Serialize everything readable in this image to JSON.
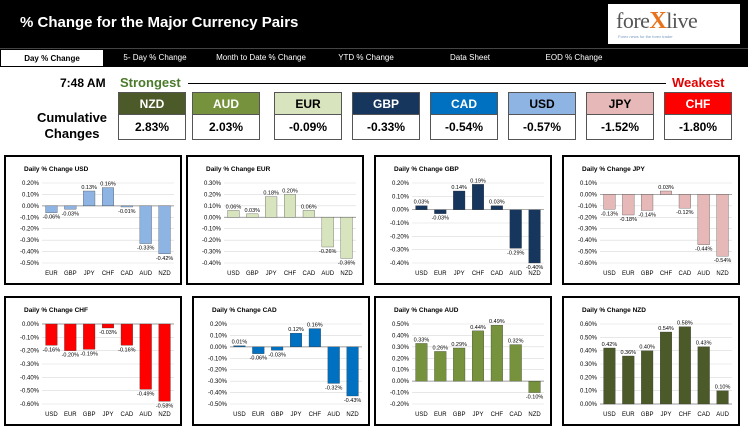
{
  "header": {
    "title": "% Change for the Major Currency Pairs",
    "logo_text_a": "fore",
    "logo_text_x": "X",
    "logo_text_b": "live",
    "logo_tagline": "Forex news for the forex trader"
  },
  "tabs": [
    {
      "label": "Day % Change",
      "active": true
    },
    {
      "label": "5- Day % Change",
      "active": false
    },
    {
      "label": "Month to Date % Change",
      "active": false
    },
    {
      "label": "YTD % Change",
      "active": false
    },
    {
      "label": "Data Sheet",
      "active": false
    },
    {
      "label": "EOD % Change",
      "active": false
    }
  ],
  "time": "7:48 AM",
  "strongest_label": "Strongest",
  "weakest_label": "Weakest",
  "cumulative_label": "Cumulative Changes",
  "currencies": [
    {
      "name": "NZD",
      "value": "2.83%",
      "bg": "#4b5a28",
      "fg": "#ffffff"
    },
    {
      "name": "AUD",
      "value": "2.03%",
      "bg": "#76923c",
      "fg": "#ffffff"
    },
    {
      "name": "EUR",
      "value": "-0.09%",
      "bg": "#d7e4bd",
      "fg": "#000000"
    },
    {
      "name": "GBP",
      "value": "-0.33%",
      "bg": "#17365d",
      "fg": "#ffffff"
    },
    {
      "name": "CAD",
      "value": "-0.54%",
      "bg": "#0070c0",
      "fg": "#ffffff"
    },
    {
      "name": "USD",
      "value": "-0.57%",
      "bg": "#8eb4e3",
      "fg": "#000000"
    },
    {
      "name": "JPY",
      "value": "-1.52%",
      "bg": "#e6b9b8",
      "fg": "#000000"
    },
    {
      "name": "CHF",
      "value": "-1.80%",
      "bg": "#ff0000",
      "fg": "#ffffff"
    }
  ],
  "chart_data": [
    {
      "type": "bar",
      "title": "Daily % Change USD",
      "categories": [
        "EUR",
        "GBP",
        "JPY",
        "CHF",
        "CAD",
        "AUD",
        "NZD"
      ],
      "values": [
        -0.06,
        -0.03,
        0.13,
        0.16,
        -0.01,
        -0.33,
        -0.42
      ],
      "labels": [
        "-0.06%",
        "-0.03%",
        "0.13%",
        "0.16%",
        "-0.01%",
        "-0.33%",
        "-0.42%"
      ],
      "ylim": [
        -0.5,
        0.2
      ],
      "ticks": [
        "0.20%",
        "0.10%",
        "0.00%",
        "-0.10%",
        "-0.20%",
        "-0.30%",
        "-0.40%",
        "-0.50%"
      ],
      "color": "#8eb4e3"
    },
    {
      "type": "bar",
      "title": "Daily % Change EUR",
      "categories": [
        "USD",
        "GBP",
        "JPY",
        "CHF",
        "CAD",
        "AUD",
        "NZD"
      ],
      "values": [
        0.06,
        0.03,
        0.18,
        0.2,
        0.06,
        -0.26,
        -0.36
      ],
      "labels": [
        "0.06%",
        "0.03%",
        "0.18%",
        "0.20%",
        "0.06%",
        "-0.26%",
        "-0.36%"
      ],
      "ylim": [
        -0.4,
        0.3
      ],
      "ticks": [
        "0.30%",
        "0.20%",
        "0.10%",
        "0.00%",
        "-0.10%",
        "-0.20%",
        "-0.30%",
        "-0.40%"
      ],
      "color": "#d7e4bd"
    },
    {
      "type": "bar",
      "title": "Daily % Change GBP",
      "categories": [
        "USD",
        "EUR",
        "JPY",
        "CHF",
        "CAD",
        "AUD",
        "NZD"
      ],
      "values": [
        0.03,
        -0.03,
        0.14,
        0.19,
        0.03,
        -0.29,
        -0.4
      ],
      "labels": [
        "0.03%",
        "-0.03%",
        "0.14%",
        "0.19%",
        "0.03%",
        "-0.29%",
        "-0.40%"
      ],
      "ylim": [
        -0.4,
        0.2
      ],
      "ticks": [
        "0.20%",
        "0.10%",
        "0.00%",
        "-0.10%",
        "-0.20%",
        "-0.30%",
        "-0.40%"
      ],
      "color": "#17365d"
    },
    {
      "type": "bar",
      "title": "Daily % Change JPY",
      "categories": [
        "USD",
        "EUR",
        "GBP",
        "CHF",
        "CAD",
        "AUD",
        "NZD"
      ],
      "values": [
        -0.13,
        -0.18,
        -0.14,
        0.03,
        -0.12,
        -0.44,
        -0.54
      ],
      "labels": [
        "-0.13%",
        "-0.18%",
        "-0.14%",
        "0.03%",
        "-0.12%",
        "-0.44%",
        "-0.54%"
      ],
      "ylim": [
        -0.6,
        0.1
      ],
      "ticks": [
        "0.10%",
        "0.00%",
        "-0.10%",
        "-0.20%",
        "-0.30%",
        "-0.40%",
        "-0.50%",
        "-0.60%"
      ],
      "color": "#e6b9b8"
    },
    {
      "type": "bar",
      "title": "Daily % Change CHF",
      "categories": [
        "USD",
        "EUR",
        "GBP",
        "JPY",
        "CAD",
        "AUD",
        "NZD"
      ],
      "values": [
        -0.16,
        -0.2,
        -0.19,
        -0.03,
        -0.16,
        -0.49,
        -0.58
      ],
      "labels": [
        "-0.16%",
        "-0.20%",
        "-0.19%",
        "-0.03%",
        "-0.16%",
        "-0.49%",
        "-0.58%"
      ],
      "ylim": [
        -0.6,
        0.0
      ],
      "ticks": [
        "0.00%",
        "-0.10%",
        "-0.20%",
        "-0.30%",
        "-0.40%",
        "-0.50%",
        "-0.60%"
      ],
      "color": "#ff0000"
    },
    {
      "type": "bar",
      "title": "Daily % Change CAD",
      "categories": [
        "USD",
        "EUR",
        "GBP",
        "JPY",
        "CHF",
        "AUD",
        "NZD"
      ],
      "values": [
        0.01,
        -0.06,
        -0.03,
        0.12,
        0.16,
        -0.32,
        -0.43
      ],
      "labels": [
        "0.01%",
        "-0.06%",
        "-0.03%",
        "0.12%",
        "0.16%",
        "-0.32%",
        "-0.43%"
      ],
      "ylim": [
        -0.5,
        0.2
      ],
      "ticks": [
        "0.20%",
        "0.10%",
        "0.00%",
        "-0.10%",
        "-0.20%",
        "-0.30%",
        "-0.40%",
        "-0.50%"
      ],
      "color": "#0070c0"
    },
    {
      "type": "bar",
      "title": "Daily % Change AUD",
      "categories": [
        "USD",
        "EUR",
        "GBP",
        "JPY",
        "CHF",
        "CAD",
        "NZD"
      ],
      "values": [
        0.33,
        0.26,
        0.29,
        0.44,
        0.49,
        0.32,
        -0.1
      ],
      "labels": [
        "0.33%",
        "0.26%",
        "0.29%",
        "0.44%",
        "0.49%",
        "0.32%",
        "-0.10%"
      ],
      "ylim": [
        -0.2,
        0.5
      ],
      "ticks": [
        "0.50%",
        "0.40%",
        "0.30%",
        "0.20%",
        "0.10%",
        "0.00%",
        "-0.10%",
        "-0.20%"
      ],
      "color": "#76923c"
    },
    {
      "type": "bar",
      "title": "Daily % Change NZD",
      "categories": [
        "USD",
        "EUR",
        "GBP",
        "JPY",
        "CHF",
        "CAD",
        "AUD"
      ],
      "values": [
        0.42,
        0.36,
        0.4,
        0.54,
        0.58,
        0.43,
        0.1
      ],
      "labels": [
        "0.42%",
        "0.36%",
        "0.40%",
        "0.54%",
        "0.58%",
        "0.43%",
        "0.10%"
      ],
      "ylim": [
        0.0,
        0.6
      ],
      "ticks": [
        "0.60%",
        "0.50%",
        "0.40%",
        "0.30%",
        "0.20%",
        "0.10%",
        "0.00%"
      ],
      "color": "#4b5a28"
    }
  ]
}
